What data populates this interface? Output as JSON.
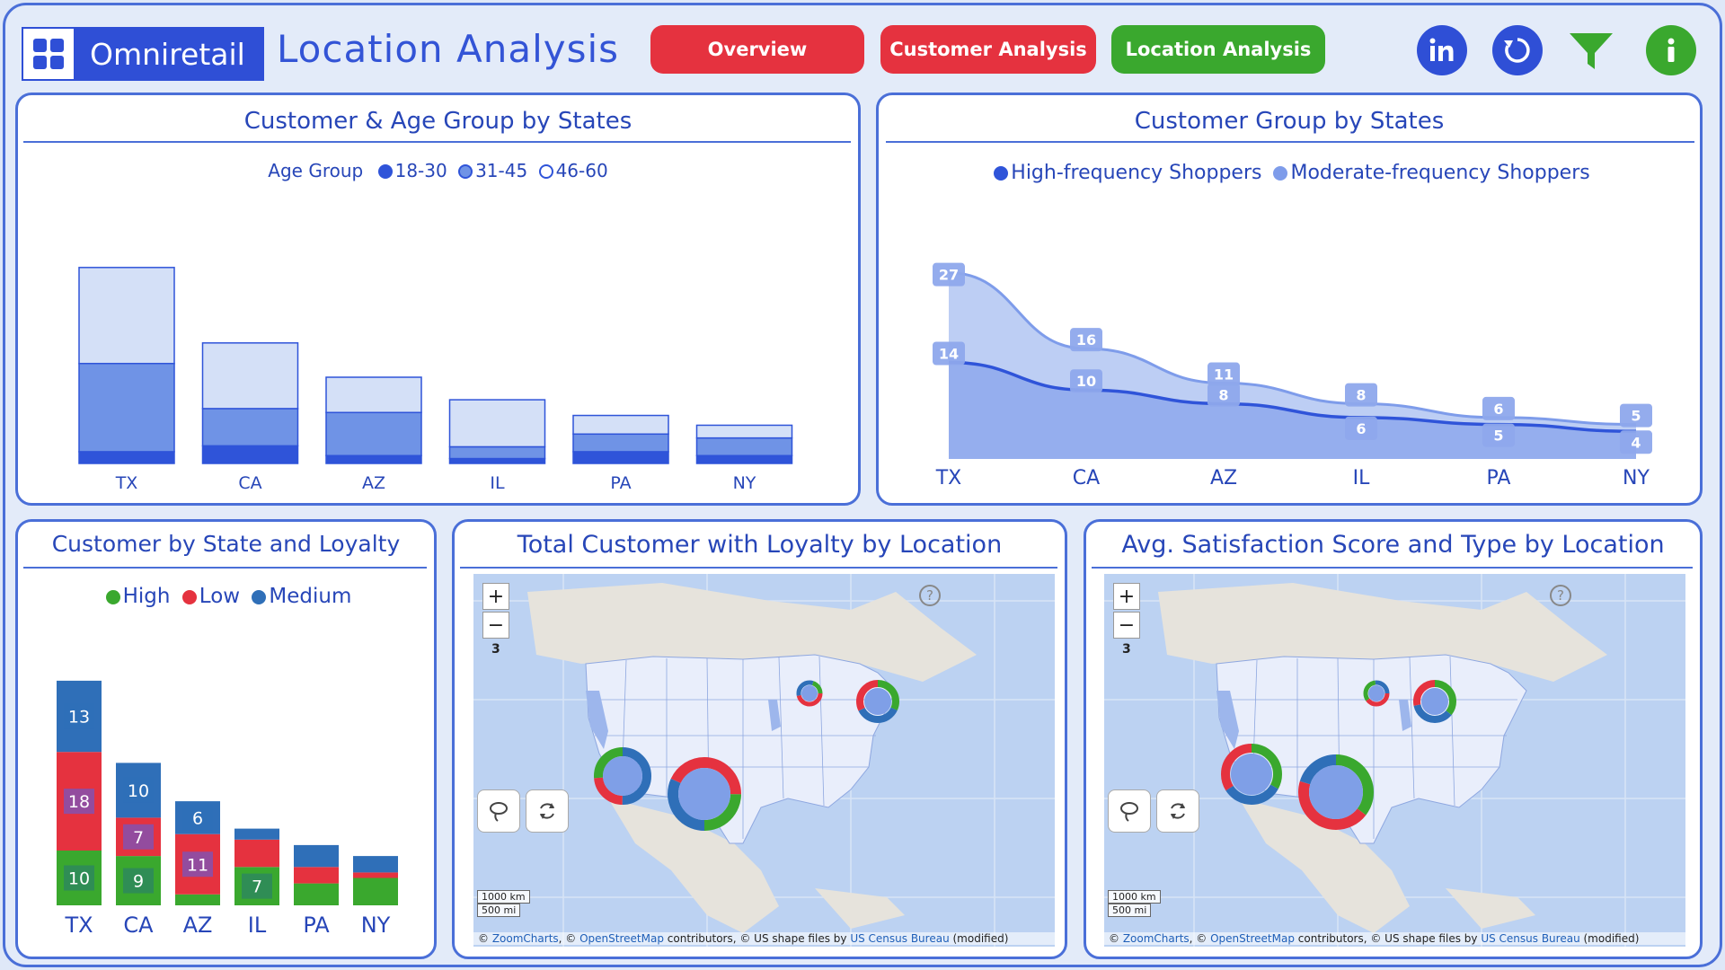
{
  "header": {
    "brand": "Omniretail",
    "title": "Location Analysis",
    "nav": [
      {
        "label": "Overview",
        "color": "#e5323f"
      },
      {
        "label": "Customer Analysis",
        "color": "#e5323f"
      },
      {
        "label": "Location Analysis",
        "color": "#3aa82e"
      }
    ],
    "icons": [
      "linkedin-icon",
      "refresh-icon",
      "filter-icon",
      "info-icon"
    ]
  },
  "panels": {
    "age": {
      "title": "Customer & Age Group by States",
      "legend_title": "Age Group",
      "legend": [
        "18-30",
        "31-45",
        "46-60"
      ]
    },
    "group": {
      "title": "Customer Group by States",
      "legend": [
        "High-frequency Shoppers",
        "Moderate-frequency Shoppers"
      ]
    },
    "loyalty": {
      "title": "Customer by State and Loyalty",
      "legend": [
        "High",
        "Low",
        "Medium"
      ]
    },
    "map1": {
      "title": "Total Customer with Loyalty by Location",
      "zoom_label": "3",
      "scale": [
        "1000 km",
        "500 mi"
      ],
      "attribution": {
        "a": "ZoomCharts",
        "b": "OpenStreetMap",
        "c": " contributors, © US shape files by ",
        "d": "US Census Bureau",
        "e": " (modified)"
      }
    },
    "map2": {
      "title": "Avg. Satisfaction Score and Type by Location",
      "zoom_label": "3",
      "scale": [
        "1000 km",
        "500 mi"
      ],
      "attribution": {
        "a": "ZoomCharts",
        "b": "OpenStreetMap",
        "c": " contributors, © US shape files by ",
        "d": "US Census Bureau",
        "e": " (modified)"
      }
    }
  },
  "chart_data": [
    {
      "type": "bar",
      "title": "Customer & Age Group by States",
      "categories": [
        "TX",
        "CA",
        "AZ",
        "IL",
        "PA",
        "NY"
      ],
      "series": [
        {
          "name": "18-30",
          "values": [
            1.2,
            1.8,
            0.8,
            0.5,
            1.2,
            0.8
          ],
          "color": "#2f54d9"
        },
        {
          "name": "31-45",
          "values": [
            9,
            3.8,
            4.4,
            1.2,
            1.8,
            1.8
          ],
          "color": "#6f93e6"
        },
        {
          "name": "46-60",
          "values": [
            9.8,
            6.7,
            3.6,
            4.8,
            1.9,
            1.3
          ],
          "color": "#d4e0f7"
        }
      ],
      "ylim": [
        0,
        22
      ]
    },
    {
      "type": "area",
      "title": "Customer Group by States",
      "categories": [
        "TX",
        "CA",
        "AZ",
        "IL",
        "PA",
        "NY"
      ],
      "series": [
        {
          "name": "High-frequency Shoppers",
          "values": [
            14,
            10,
            8,
            6,
            5,
            4
          ],
          "color": "#2f54d9"
        },
        {
          "name": "Moderate-frequency Shoppers",
          "values": [
            27,
            16,
            11,
            8,
            6,
            5
          ],
          "color": "#7e9cea"
        }
      ],
      "ylim": [
        0,
        30
      ]
    },
    {
      "type": "bar",
      "title": "Customer by State and Loyalty",
      "categories": [
        "TX",
        "CA",
        "AZ",
        "IL",
        "PA",
        "NY"
      ],
      "series": [
        {
          "name": "High",
          "values": [
            10,
            9,
            2,
            7,
            4,
            5
          ],
          "color": "#3aa82e",
          "labels": [
            "10",
            "9",
            "",
            "7",
            "",
            ""
          ]
        },
        {
          "name": "Low",
          "values": [
            18,
            7,
            11,
            5,
            3,
            1
          ],
          "color": "#e5323f",
          "labels": [
            "18",
            "7",
            "11",
            "",
            "",
            ""
          ]
        },
        {
          "name": "Medium",
          "values": [
            13,
            10,
            6,
            2,
            4,
            3
          ],
          "color": "#2f6fb8",
          "labels": [
            "13",
            "10",
            "6",
            "",
            "",
            ""
          ]
        }
      ]
    }
  ],
  "colors": {
    "high": "#3aa82e",
    "low": "#e5323f",
    "medium": "#2f6fb8",
    "accent": "#4a6fd8"
  }
}
